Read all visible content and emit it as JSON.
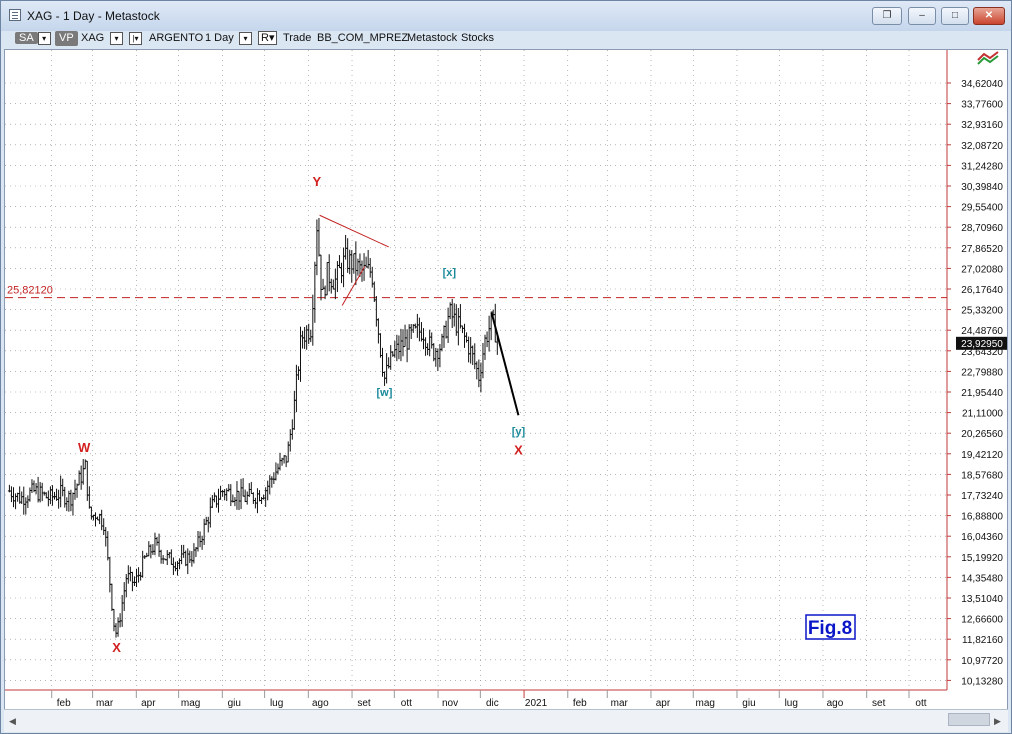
{
  "window": {
    "title": "XAG - 1 Day - Metastock",
    "close_glyph": "✕",
    "maximize_glyph": "□",
    "minimize_glyph": "–",
    "restore_glyph": "❐"
  },
  "toolbar": {
    "sa_label": "SA",
    "vp_label": "VP",
    "symbol": "XAG",
    "name": "ARGENTO",
    "period": "1 Day",
    "r_label": "R",
    "trade_label": "Trade",
    "template": "BB_COM_MPREZ",
    "source": "Metastock",
    "category": "Stocks"
  },
  "chart_data": {
    "type": "ohlc",
    "current_price": "23,92950",
    "resistance_level": "25,82120",
    "fig_label": "Fig.8",
    "colors": {
      "bars": "#111111",
      "horizontal_line": "#c22222",
      "wave_red": "#d21f1f",
      "wave_teal": "#1a8a9a",
      "fig_label": "#0a16c8",
      "axis": "#c23a3a"
    },
    "price_axis_labels": [
      "34,62040",
      "33,77600",
      "32,93160",
      "32,08720",
      "31,24280",
      "30,39840",
      "29,55400",
      "28,70960",
      "27,86520",
      "27,02080",
      "26,17640",
      "25,33200",
      "24,48760",
      "23,64320",
      "22,79880",
      "21,95440",
      "21,11000",
      "20,26560",
      "19,42120",
      "18,57680",
      "17,73240",
      "16,88800",
      "16,04360",
      "15,19920",
      "14,35480",
      "13,51040",
      "12,66600",
      "11,82160",
      "10,97720",
      "10,13280"
    ],
    "date_axis_labels": [
      "feb",
      "mar",
      "apr",
      "mag",
      "giu",
      "lug",
      "ago",
      "set",
      "ott",
      "nov",
      "dic",
      "2021",
      "feb",
      "mar",
      "apr",
      "mag",
      "giu",
      "lug",
      "ago",
      "set",
      "ott"
    ],
    "wave_labels": [
      {
        "text": "W",
        "date": "2020-02-24",
        "price": 19.5,
        "color": "red"
      },
      {
        "text": "X",
        "date": "2020-03-18",
        "price": 11.3,
        "color": "red"
      },
      {
        "text": "Y",
        "date": "2020-08-07",
        "price": 30.4,
        "color": "red"
      },
      {
        "text": "[w]",
        "date": "2020-09-24",
        "price": 21.8,
        "color": "teal"
      },
      {
        "text": "[x]",
        "date": "2020-11-09",
        "price": 26.7,
        "color": "teal"
      },
      {
        "text": "[y]",
        "date": "2020-12-28",
        "price": 20.2,
        "color": "teal"
      },
      {
        "text": "X",
        "date": "2020-12-28",
        "price": 19.4,
        "color": "red"
      }
    ],
    "projection": [
      {
        "date": "2020-12-09",
        "price": 25.2
      },
      {
        "date": "2020-12-28",
        "price": 21.0
      }
    ],
    "triangle_lines": [
      [
        {
          "date": "2020-08-09",
          "price": 29.2
        },
        {
          "date": "2020-09-27",
          "price": 27.9
        }
      ],
      [
        {
          "date": "2020-08-25",
          "price": 25.5
        },
        {
          "date": "2020-09-10",
          "price": 27.1
        }
      ]
    ],
    "price_path": [
      [
        "2020-01-02",
        17.9
      ],
      [
        "2020-01-10",
        17.6
      ],
      [
        "2020-01-20",
        17.9
      ],
      [
        "2020-01-30",
        17.6
      ],
      [
        "2020-02-07",
        17.8
      ],
      [
        "2020-02-14",
        17.6
      ],
      [
        "2020-02-21",
        18.4
      ],
      [
        "2020-02-25",
        18.9
      ],
      [
        "2020-02-28",
        16.8
      ],
      [
        "2020-03-04",
        17.0
      ],
      [
        "2020-03-09",
        16.6
      ],
      [
        "2020-03-12",
        14.9
      ],
      [
        "2020-03-16",
        12.5
      ],
      [
        "2020-03-18",
        12.0
      ],
      [
        "2020-03-20",
        12.6
      ],
      [
        "2020-03-25",
        14.4
      ],
      [
        "2020-03-31",
        14.1
      ],
      [
        "2020-04-07",
        15.1
      ],
      [
        "2020-04-14",
        15.7
      ],
      [
        "2020-04-21",
        15.2
      ],
      [
        "2020-04-28",
        15.0
      ],
      [
        "2020-05-05",
        15.1
      ],
      [
        "2020-05-12",
        15.3
      ],
      [
        "2020-05-18",
        16.2
      ],
      [
        "2020-05-25",
        17.3
      ],
      [
        "2020-06-01",
        17.9
      ],
      [
        "2020-06-10",
        17.8
      ],
      [
        "2020-06-17",
        17.6
      ],
      [
        "2020-06-24",
        17.7
      ],
      [
        "2020-07-01",
        17.9
      ],
      [
        "2020-07-10",
        18.8
      ],
      [
        "2020-07-17",
        19.3
      ],
      [
        "2020-07-22",
        21.4
      ],
      [
        "2020-07-27",
        24.2
      ],
      [
        "2020-08-03",
        24.6
      ],
      [
        "2020-08-05",
        26.7
      ],
      [
        "2020-08-07",
        28.9
      ],
      [
        "2020-08-11",
        25.7
      ],
      [
        "2020-08-14",
        26.8
      ],
      [
        "2020-08-20",
        26.5
      ],
      [
        "2020-08-27",
        27.4
      ],
      [
        "2020-09-02",
        27.2
      ],
      [
        "2020-09-08",
        26.9
      ],
      [
        "2020-09-15",
        26.9
      ],
      [
        "2020-09-21",
        23.8
      ],
      [
        "2020-09-24",
        22.5
      ],
      [
        "2020-09-30",
        23.5
      ],
      [
        "2020-10-07",
        23.9
      ],
      [
        "2020-10-14",
        24.3
      ],
      [
        "2020-10-21",
        24.5
      ],
      [
        "2020-10-28",
        23.6
      ],
      [
        "2020-11-04",
        23.9
      ],
      [
        "2020-11-09",
        25.2
      ],
      [
        "2020-11-16",
        24.6
      ],
      [
        "2020-11-23",
        23.8
      ],
      [
        "2020-11-30",
        22.6
      ],
      [
        "2020-12-04",
        24.0
      ],
      [
        "2020-12-09",
        24.9
      ],
      [
        "2020-12-14",
        24.0
      ]
    ]
  }
}
